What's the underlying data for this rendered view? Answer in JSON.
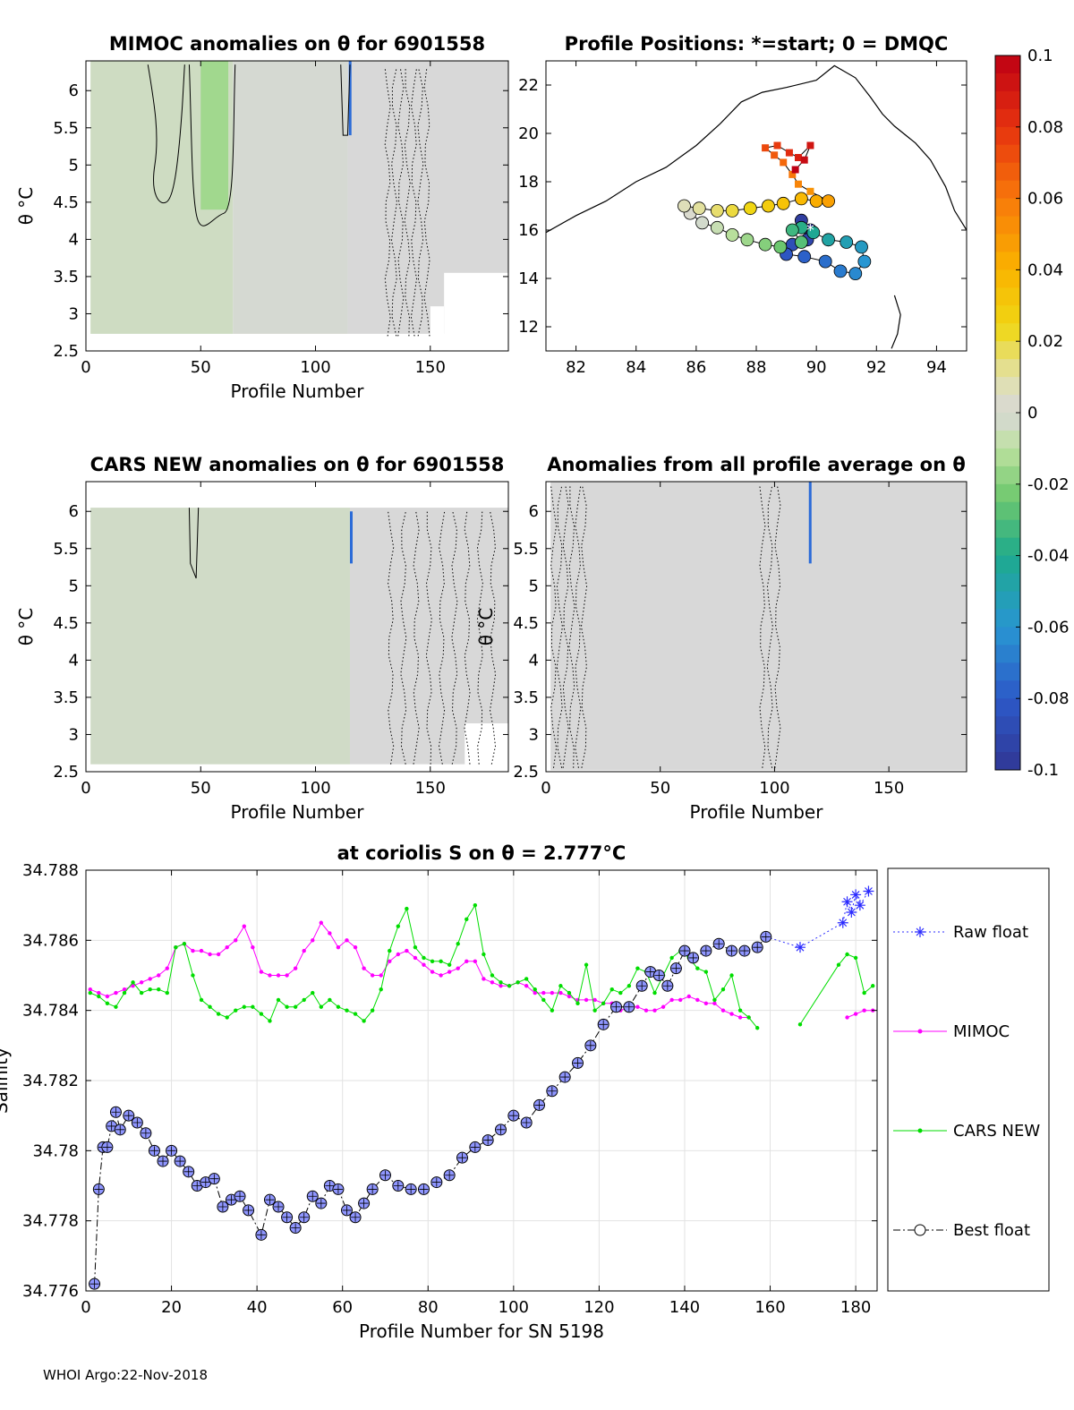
{
  "chart_data": [
    {
      "type": "heatmap",
      "title": "MIMOC anomalies on θ  for 6901558",
      "xlabel": "Profile Number",
      "ylabel": "θ °C",
      "xlim": [
        0,
        184
      ],
      "ylim": [
        2.5,
        6.4
      ],
      "xticks": [
        "0",
        "50",
        "100",
        "150"
      ],
      "yticks": [
        "2.5",
        "3",
        "3.5",
        "4",
        "4.5",
        "5",
        "5.5",
        "6"
      ],
      "cells": [
        {
          "x": [
            2,
            64
          ],
          "y": [
            2.73,
            6.4
          ],
          "value": -0.004
        },
        {
          "x": [
            50,
            62
          ],
          "y": [
            4.4,
            6.4
          ],
          "value": -0.015
        },
        {
          "x": [
            64,
            114
          ],
          "y": [
            2.73,
            6.4
          ],
          "value": -0.001
        },
        {
          "x": [
            114,
            184
          ],
          "y": [
            2.73,
            6.4
          ],
          "value": 0.0
        }
      ]
    },
    {
      "type": "scatter",
      "title": "Profile Positions: *=start; 0 = DMQC",
      "xlim": [
        81,
        95
      ],
      "ylim": [
        11,
        23
      ],
      "xticks": [
        "82",
        "84",
        "86",
        "88",
        "90",
        "92",
        "94"
      ],
      "yticks": [
        "12",
        "14",
        "16",
        "18",
        "20",
        "22"
      ],
      "track": [
        [
          89.8,
          16.0
        ],
        [
          89.5,
          16.4
        ],
        [
          89.7,
          15.6
        ],
        [
          89.2,
          15.4
        ],
        [
          89.0,
          15.0
        ],
        [
          89.6,
          14.9
        ],
        [
          90.3,
          14.7
        ],
        [
          90.8,
          14.3
        ],
        [
          91.3,
          14.2
        ],
        [
          91.6,
          14.7
        ],
        [
          91.5,
          15.3
        ],
        [
          91.0,
          15.5
        ],
        [
          90.4,
          15.6
        ],
        [
          89.9,
          15.9
        ],
        [
          89.5,
          16.1
        ],
        [
          89.2,
          16.0
        ],
        [
          89.5,
          15.5
        ],
        [
          88.8,
          15.3
        ],
        [
          88.3,
          15.4
        ],
        [
          87.7,
          15.6
        ],
        [
          87.2,
          15.8
        ],
        [
          86.7,
          16.1
        ],
        [
          86.2,
          16.3
        ],
        [
          85.8,
          16.7
        ],
        [
          85.6,
          17.0
        ],
        [
          86.1,
          16.9
        ],
        [
          86.7,
          16.8
        ],
        [
          87.2,
          16.8
        ],
        [
          87.8,
          16.9
        ],
        [
          88.4,
          17.0
        ],
        [
          88.9,
          17.1
        ],
        [
          89.5,
          17.3
        ],
        [
          90.0,
          17.2
        ],
        [
          90.4,
          17.2
        ],
        [
          89.8,
          17.6
        ],
        [
          89.4,
          17.9
        ],
        [
          89.2,
          18.3
        ],
        [
          88.9,
          18.8
        ],
        [
          88.6,
          19.1
        ],
        [
          88.3,
          19.4
        ],
        [
          88.7,
          19.5
        ],
        [
          89.1,
          19.2
        ],
        [
          89.4,
          19.0
        ],
        [
          89.8,
          19.5
        ],
        [
          89.6,
          18.9
        ],
        [
          89.3,
          18.5
        ]
      ]
    },
    {
      "type": "heatmap",
      "title": "CARS NEW anomalies on θ for 6901558",
      "xlabel": "Profile Number",
      "ylabel": "θ °C",
      "xlim": [
        0,
        184
      ],
      "ylim": [
        2.5,
        6.4
      ],
      "xticks": [
        "0",
        "50",
        "100",
        "150"
      ],
      "yticks": [
        "2.5",
        "3",
        "3.5",
        "4",
        "4.5",
        "5",
        "5.5",
        "6"
      ],
      "cells": [
        {
          "x": [
            2,
            115
          ],
          "y": [
            2.6,
            6.05
          ],
          "value": -0.003
        },
        {
          "x": [
            115,
            184
          ],
          "y": [
            2.6,
            6.05
          ],
          "value": 0.0
        }
      ]
    },
    {
      "type": "heatmap",
      "title": "Anomalies from all profile average on θ",
      "xlabel": "Profile Number",
      "ylabel": "θ °C",
      "xlim": [
        0,
        184
      ],
      "ylim": [
        2.5,
        6.4
      ],
      "xticks": [
        "0",
        "50",
        "100",
        "150"
      ],
      "yticks": [
        "2.5",
        "3",
        "3.5",
        "4",
        "4.5",
        "5",
        "5.5",
        "6"
      ],
      "cells": [
        {
          "x": [
            2,
            184
          ],
          "y": [
            2.52,
            6.4
          ],
          "value": 0.0
        }
      ]
    },
    {
      "type": "line",
      "title": "at coriolis S on θ = 2.777°C",
      "xlabel": "Profile Number for SN 5198",
      "ylabel": "Salinity",
      "xlim": [
        0,
        185
      ],
      "ylim": [
        34.776,
        34.788
      ],
      "xticks": [
        "0",
        "20",
        "40",
        "60",
        "80",
        "100",
        "120",
        "140",
        "160",
        "180"
      ],
      "yticks": [
        "34.776",
        "34.778",
        "34.78",
        "34.782",
        "34.784",
        "34.786",
        "34.788"
      ],
      "legend": [
        "Raw float",
        "MIMOC",
        "CARS NEW",
        "Best float"
      ],
      "series": [
        {
          "name": "Best float",
          "x": [
            2,
            3,
            4,
            5,
            6,
            7,
            8,
            10,
            12,
            14,
            16,
            18,
            20,
            22,
            24,
            26,
            28,
            30,
            32,
            34,
            36,
            38,
            41,
            43,
            45,
            47,
            49,
            51,
            53,
            55,
            57,
            59,
            61,
            63,
            65,
            67,
            70,
            73,
            76,
            79,
            82,
            85,
            88,
            91,
            94,
            97,
            100,
            103,
            106,
            109,
            112,
            115,
            118,
            121,
            124,
            127,
            130,
            132,
            134,
            136,
            138,
            140,
            142,
            145,
            148,
            151,
            154,
            157,
            159
          ],
          "y": [
            34.7762,
            34.7789,
            34.7801,
            34.7801,
            34.7807,
            34.7811,
            34.7806,
            34.781,
            34.7808,
            34.7805,
            34.78,
            34.7797,
            34.78,
            34.7797,
            34.7794,
            34.779,
            34.7791,
            34.7792,
            34.7784,
            34.7786,
            34.7787,
            34.7783,
            34.7776,
            34.7786,
            34.7784,
            34.7781,
            34.7778,
            34.7781,
            34.7787,
            34.7785,
            34.779,
            34.7789,
            34.7783,
            34.7781,
            34.7785,
            34.7789,
            34.7793,
            34.779,
            34.7789,
            34.7789,
            34.7791,
            34.7793,
            34.7798,
            34.7801,
            34.7803,
            34.7806,
            34.781,
            34.7808,
            34.7813,
            34.7817,
            34.7821,
            34.7825,
            34.783,
            34.7836,
            34.7841,
            34.7841,
            34.7847,
            34.7851,
            34.785,
            34.7847,
            34.7852,
            34.7857,
            34.7855,
            34.7857,
            34.7859,
            34.7857,
            34.7857,
            34.7858,
            34.7861
          ]
        },
        {
          "name": "Raw float",
          "x": [
            159,
            167,
            177,
            178,
            179,
            180,
            181,
            183
          ],
          "y": [
            34.7861,
            34.7858,
            34.7865,
            34.7871,
            34.7868,
            34.7873,
            34.787,
            34.7874
          ]
        },
        {
          "name": "MIMOC",
          "x": [
            1,
            3,
            5,
            7,
            9,
            11,
            13,
            15,
            17,
            19,
            21,
            23,
            25,
            27,
            29,
            31,
            33,
            35,
            37,
            39,
            41,
            43,
            45,
            47,
            49,
            51,
            53,
            55,
            57,
            59,
            61,
            63,
            65,
            67,
            69,
            71,
            73,
            75,
            77,
            79,
            81,
            83,
            85,
            87,
            89,
            91,
            93,
            95,
            97,
            99,
            101,
            103,
            105,
            107,
            109,
            111,
            113,
            115,
            117,
            119,
            121,
            123,
            125,
            127,
            129,
            131,
            133,
            135,
            137,
            139,
            141,
            143,
            145,
            147,
            149,
            151,
            153,
            155
          ],
          "y": [
            34.7846,
            34.7845,
            34.7844,
            34.7845,
            34.7846,
            34.7847,
            34.7848,
            34.7849,
            34.785,
            34.7852,
            34.7858,
            34.7859,
            34.7857,
            34.7857,
            34.7856,
            34.7856,
            34.7858,
            34.786,
            34.7864,
            34.7858,
            34.7851,
            34.785,
            34.785,
            34.785,
            34.7852,
            34.7857,
            34.786,
            34.7865,
            34.7862,
            34.7858,
            34.786,
            34.7858,
            34.7852,
            34.785,
            34.785,
            34.7854,
            34.7856,
            34.7857,
            34.7855,
            34.7853,
            34.7851,
            34.785,
            34.7851,
            34.7852,
            34.7854,
            34.7854,
            34.7849,
            34.7848,
            34.7847,
            34.7847,
            34.7848,
            34.7847,
            34.7845,
            34.7845,
            34.7845,
            34.7845,
            34.7844,
            34.7843,
            34.7843,
            34.7843,
            34.7842,
            34.7842,
            34.784,
            34.7841,
            34.7841,
            34.784,
            34.784,
            34.7841,
            34.7843,
            34.7843,
            34.7844,
            34.7843,
            34.7842,
            34.7842,
            34.784,
            34.7839,
            34.7838,
            34.7838
          ]
        },
        {
          "name": "MIMOC (tail)",
          "x": [
            178,
            180,
            182,
            184
          ],
          "y": [
            34.7838,
            34.7839,
            34.784,
            34.784
          ]
        },
        {
          "name": "CARS NEW",
          "x": [
            1,
            3,
            5,
            7,
            9,
            11,
            13,
            15,
            17,
            19,
            21,
            23,
            25,
            27,
            29,
            31,
            33,
            35,
            37,
            39,
            41,
            43,
            45,
            47,
            49,
            51,
            53,
            55,
            57,
            59,
            61,
            63,
            65,
            67,
            69,
            71,
            73,
            75,
            77,
            79,
            81,
            83,
            85,
            87,
            89,
            91,
            93,
            95,
            97,
            99,
            101,
            103,
            105,
            107,
            109,
            111,
            113,
            115,
            117,
            119,
            121,
            123,
            125,
            127,
            129,
            131,
            133,
            135,
            137,
            139,
            141,
            143,
            145,
            147,
            149,
            151,
            153,
            155,
            157
          ],
          "y": [
            34.7845,
            34.7844,
            34.7842,
            34.7841,
            34.7845,
            34.7848,
            34.7845,
            34.7846,
            34.7846,
            34.7845,
            34.7858,
            34.7859,
            34.785,
            34.7843,
            34.7841,
            34.7839,
            34.7838,
            34.784,
            34.7841,
            34.7841,
            34.7839,
            34.7837,
            34.7843,
            34.7841,
            34.7841,
            34.7843,
            34.7845,
            34.7841,
            34.7843,
            34.7841,
            34.784,
            34.7839,
            34.7837,
            34.784,
            34.7846,
            34.7857,
            34.7864,
            34.7869,
            34.7858,
            34.7855,
            34.7854,
            34.7854,
            34.7853,
            34.7859,
            34.7866,
            34.787,
            34.7856,
            34.785,
            34.7848,
            34.7847,
            34.7848,
            34.7849,
            34.7846,
            34.7843,
            34.784,
            34.7847,
            34.7845,
            34.7842,
            34.7853,
            34.784,
            34.7842,
            34.7846,
            34.7845,
            34.7847,
            34.7852,
            34.7851,
            34.7845,
            34.785,
            34.7855,
            34.7857,
            34.7855,
            34.7852,
            34.7851,
            34.7843,
            34.7846,
            34.785,
            34.784,
            34.7838,
            34.7835
          ]
        },
        {
          "name": "CARS NEW (tail)",
          "x": [
            167,
            176,
            178,
            180,
            182,
            184
          ],
          "y": [
            34.7836,
            34.7853,
            34.7856,
            34.7855,
            34.7845,
            34.7847
          ]
        }
      ]
    }
  ],
  "colorbar": {
    "ticks": [
      "0.1",
      "0.08",
      "0.06",
      "0.04",
      "0.02",
      "0",
      "-0.02",
      "-0.04",
      "-0.06",
      "-0.08",
      "-0.1"
    ],
    "range": [
      -0.1,
      0.1
    ]
  },
  "colors": {
    "raw": "#2b2bff",
    "mimoc": "#ff00ff",
    "cars": "#00dd00",
    "best": "#000000",
    "grid": "#e2e2e2"
  },
  "footer": "WHOI Argo:22-Nov-2018"
}
